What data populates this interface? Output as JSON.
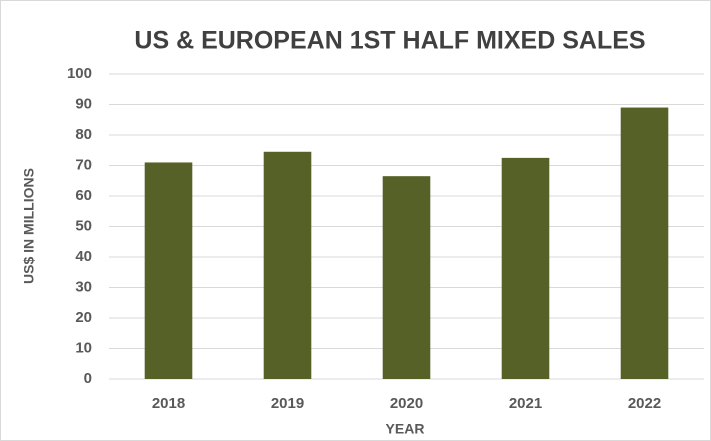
{
  "chart_data": {
    "type": "bar",
    "title": "US & EUROPEAN 1ST HALF MIXED SALES",
    "x_label": "YEAR",
    "y_label": "US$ IN MILLIONS",
    "categories": [
      "2018",
      "2019",
      "2020",
      "2021",
      "2022"
    ],
    "values": [
      71,
      74.5,
      66.5,
      72.5,
      89
    ],
    "color": "#566128",
    "ylim": [
      0,
      100
    ],
    "yticks": [
      0,
      10,
      20,
      30,
      40,
      50,
      60,
      70,
      80,
      90,
      100
    ],
    "grid": true
  }
}
